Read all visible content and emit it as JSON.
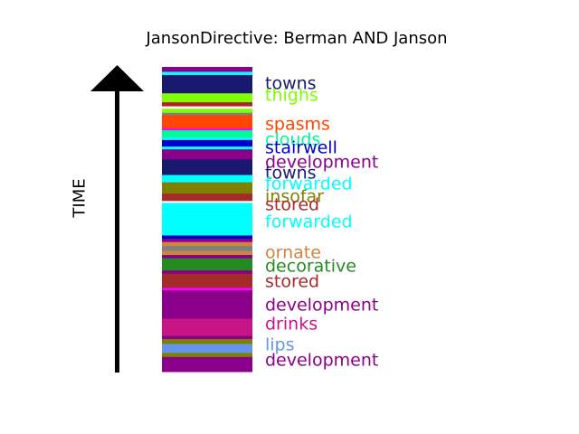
{
  "chart_data": {
    "type": "bar",
    "title": "JansonDirective: Berman AND Janson",
    "ylabel": "TIME",
    "bands": [
      {
        "c": "#8B008B",
        "h": 1.2
      },
      {
        "c": "#00FFFF",
        "h": 0.8
      },
      {
        "c": "#191970",
        "h": 4.5
      },
      {
        "c": "#7FFF00",
        "h": 2.2
      },
      {
        "c": "#B22222",
        "h": 1.0
      },
      {
        "c": "#FFFFFF",
        "h": 0.6
      },
      {
        "c": "#7FFF00",
        "h": 1.0
      },
      {
        "c": "#808080",
        "h": 0.6
      },
      {
        "c": "#FF4500",
        "h": 3.2
      },
      {
        "c": "#FF00FF",
        "h": 0.5
      },
      {
        "c": "#00FA9A",
        "h": 1.8
      },
      {
        "c": "#00FFFF",
        "h": 0.6
      },
      {
        "c": "#0000CD",
        "h": 1.6
      },
      {
        "c": "#00FFFF",
        "h": 0.7
      },
      {
        "c": "#8B008B",
        "h": 2.5
      },
      {
        "c": "#191970",
        "h": 3.8
      },
      {
        "c": "#00FFFF",
        "h": 1.8
      },
      {
        "c": "#808000",
        "h": 2.8
      },
      {
        "c": "#A52A2A",
        "h": 1.8
      },
      {
        "c": "#FFFFFF",
        "h": 0.5
      },
      {
        "c": "#00FFFF",
        "h": 8.0
      },
      {
        "c": "#0000CD",
        "h": 0.8
      },
      {
        "c": "#8B008B",
        "h": 0.8
      },
      {
        "c": "#CD853F",
        "h": 1.0
      },
      {
        "c": "#808080",
        "h": 1.2
      },
      {
        "c": "#CD853F",
        "h": 1.0
      },
      {
        "c": "#8B008B",
        "h": 0.8
      },
      {
        "c": "#228B22",
        "h": 3.0
      },
      {
        "c": "#8B008B",
        "h": 0.8
      },
      {
        "c": "#A52A2A",
        "h": 3.5
      },
      {
        "c": "#FF00FF",
        "h": 0.6
      },
      {
        "c": "#8B008B",
        "h": 7.0
      },
      {
        "c": "#C71585",
        "h": 4.2
      },
      {
        "c": "#8B008B",
        "h": 0.8
      },
      {
        "c": "#808000",
        "h": 1.2
      },
      {
        "c": "#6495ED",
        "h": 2.2
      },
      {
        "c": "#808000",
        "h": 1.0
      },
      {
        "c": "#8B008B",
        "h": 3.6
      }
    ],
    "labels": [
      {
        "text": "towns",
        "c": "#191970",
        "pos": 5.5
      },
      {
        "text": "thighs",
        "c": "#7FFF00",
        "pos": 9.5
      },
      {
        "text": "spasms",
        "c": "#FF4500",
        "pos": 19.0
      },
      {
        "text": "clouds",
        "c": "#00FA9A",
        "pos": 24.0
      },
      {
        "text": "stairwell",
        "c": "#0000CD",
        "pos": 26.7
      },
      {
        "text": "development",
        "c": "#8B008B",
        "pos": 31.5
      },
      {
        "text": "towns",
        "c": "#191970",
        "pos": 35.0
      },
      {
        "text": "forwarded",
        "c": "#00FFFF",
        "pos": 38.7
      },
      {
        "text": "insofar",
        "c": "#808000",
        "pos": 42.8
      },
      {
        "text": "stored",
        "c": "#A52A2A",
        "pos": 45.4
      },
      {
        "text": "forwarded",
        "c": "#00FFFF",
        "pos": 51.1
      },
      {
        "text": "ornate",
        "c": "#CD853F",
        "pos": 61.0
      },
      {
        "text": "decorative",
        "c": "#228B22",
        "pos": 65.5
      },
      {
        "text": "stored",
        "c": "#A52A2A",
        "pos": 70.5
      },
      {
        "text": "development",
        "c": "#8B008B",
        "pos": 78.4
      },
      {
        "text": "drinks",
        "c": "#C71585",
        "pos": 84.6
      },
      {
        "text": "lips",
        "c": "#6495ED",
        "pos": 91.5
      },
      {
        "text": "development",
        "c": "#8B008B",
        "pos": 96.5
      }
    ]
  }
}
